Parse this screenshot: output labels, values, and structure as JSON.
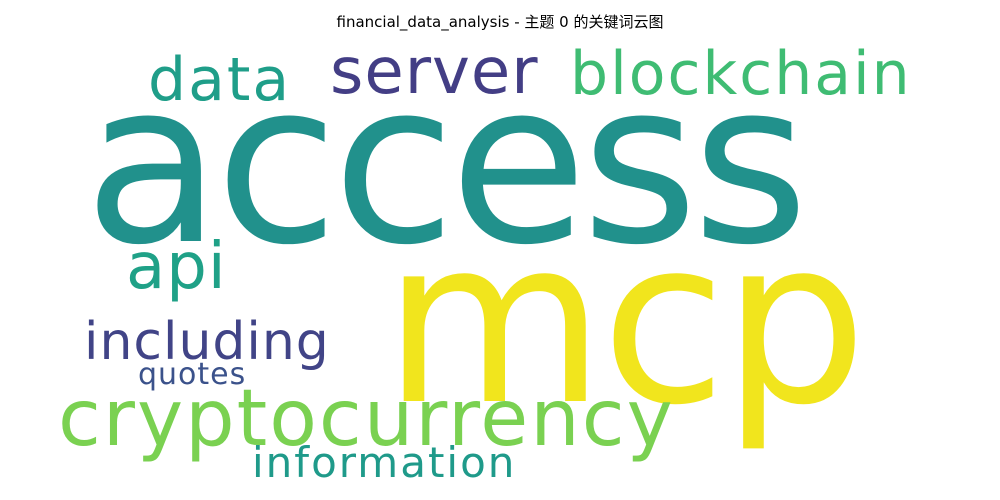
{
  "figure": {
    "title": "financial_data_analysis - 主题 0 的关键词云图"
  },
  "wordcloud": {
    "words": [
      {
        "id": "access",
        "text": "access",
        "color": "#21918c"
      },
      {
        "id": "mcp",
        "text": "mcp",
        "color": "#f1e51d"
      },
      {
        "id": "server",
        "text": "server",
        "color": "#433e85"
      },
      {
        "id": "blockchain",
        "text": "blockchain",
        "color": "#3fbc73"
      },
      {
        "id": "data",
        "text": "data",
        "color": "#1f9e89"
      },
      {
        "id": "api",
        "text": "api",
        "color": "#1fa187"
      },
      {
        "id": "including",
        "text": "including",
        "color": "#414487"
      },
      {
        "id": "quotes",
        "text": "quotes",
        "color": "#3b528b"
      },
      {
        "id": "cryptocurrency",
        "text": "cryptocurrency",
        "color": "#7ad151"
      },
      {
        "id": "information",
        "text": "information",
        "color": "#1f9a8a"
      }
    ]
  }
}
